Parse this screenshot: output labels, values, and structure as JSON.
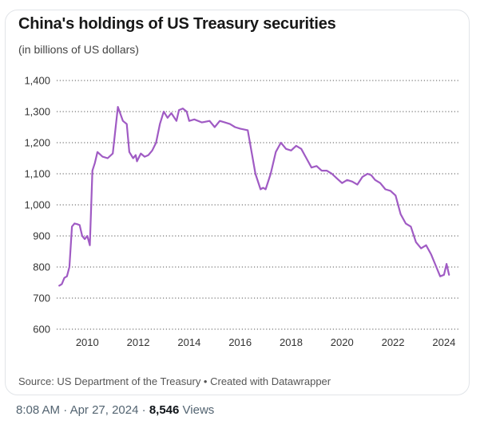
{
  "card": {
    "title": "China's holdings of US Treasury securities",
    "subtitle": "(in billions of US dollars)",
    "source": "Source: US Department of the Treasury • Created with Datawrapper"
  },
  "tweet": {
    "time": "8:08 AM",
    "separator": "·",
    "date": "Apr 27, 2024",
    "views_count": "8,546",
    "views_label": "Views"
  },
  "colors": {
    "line": "#a05bc4",
    "grid": "#555555"
  },
  "chart_data": {
    "type": "line",
    "title": "China's holdings of US Treasury securities",
    "subtitle": "(in billions of US dollars)",
    "xlabel": "",
    "ylabel": "",
    "xlim": [
      2008.8,
      2024.6
    ],
    "ylim": [
      600,
      1400
    ],
    "yticks": [
      600,
      700,
      800,
      900,
      1000,
      1100,
      1200,
      1300,
      1400
    ],
    "ytick_labels": [
      "600",
      "700",
      "800",
      "900",
      "1,000",
      "1,100",
      "1,200",
      "1,300",
      "1,400"
    ],
    "xticks": [
      2010,
      2012,
      2014,
      2016,
      2018,
      2020,
      2022,
      2024
    ],
    "xtick_labels": [
      "2010",
      "2012",
      "2014",
      "2016",
      "2018",
      "2020",
      "2022",
      "2024"
    ],
    "grid": "horizontal",
    "series": [
      {
        "x": [
          2008.9,
          2009.0,
          2009.1,
          2009.2,
          2009.3,
          2009.4,
          2009.5,
          2009.6,
          2009.7,
          2009.8,
          2009.9,
          2010.0,
          2010.1,
          2010.2,
          2010.3,
          2010.4,
          2010.6,
          2010.8,
          2011.0,
          2011.2,
          2011.4,
          2011.55,
          2011.65,
          2011.8,
          2011.9,
          2011.95,
          2012.1,
          2012.25,
          2012.4,
          2012.55,
          2012.7,
          2012.85,
          2013.0,
          2013.15,
          2013.3,
          2013.5,
          2013.6,
          2013.75,
          2013.9,
          2014.0,
          2014.2,
          2014.5,
          2014.8,
          2015.0,
          2015.2,
          2015.4,
          2015.6,
          2015.8,
          2016.0,
          2016.3,
          2016.6,
          2016.8,
          2016.9,
          2017.0,
          2017.2,
          2017.4,
          2017.6,
          2017.8,
          2018.0,
          2018.2,
          2018.4,
          2018.6,
          2018.8,
          2019.0,
          2019.2,
          2019.4,
          2019.6,
          2019.8,
          2020.0,
          2020.2,
          2020.4,
          2020.6,
          2020.8,
          2021.0,
          2021.15,
          2021.3,
          2021.5,
          2021.7,
          2021.9,
          2022.1,
          2022.3,
          2022.5,
          2022.7,
          2022.9,
          2023.1,
          2023.3,
          2023.5,
          2023.7,
          2023.85,
          2024.0,
          2024.1,
          2024.2
        ],
        "y": [
          740,
          745,
          765,
          770,
          800,
          930,
          940,
          938,
          935,
          900,
          890,
          900,
          870,
          1110,
          1135,
          1170,
          1155,
          1150,
          1165,
          1315,
          1270,
          1260,
          1170,
          1150,
          1160,
          1140,
          1165,
          1155,
          1160,
          1175,
          1200,
          1260,
          1300,
          1280,
          1295,
          1270,
          1305,
          1310,
          1300,
          1270,
          1275,
          1265,
          1270,
          1250,
          1270,
          1265,
          1260,
          1250,
          1245,
          1240,
          1100,
          1050,
          1055,
          1050,
          1100,
          1170,
          1200,
          1180,
          1175,
          1190,
          1180,
          1150,
          1120,
          1125,
          1110,
          1110,
          1100,
          1085,
          1070,
          1080,
          1075,
          1065,
          1090,
          1100,
          1095,
          1080,
          1070,
          1050,
          1045,
          1030,
          970,
          940,
          930,
          880,
          860,
          870,
          840,
          800,
          770,
          775,
          810,
          775
        ]
      }
    ]
  }
}
